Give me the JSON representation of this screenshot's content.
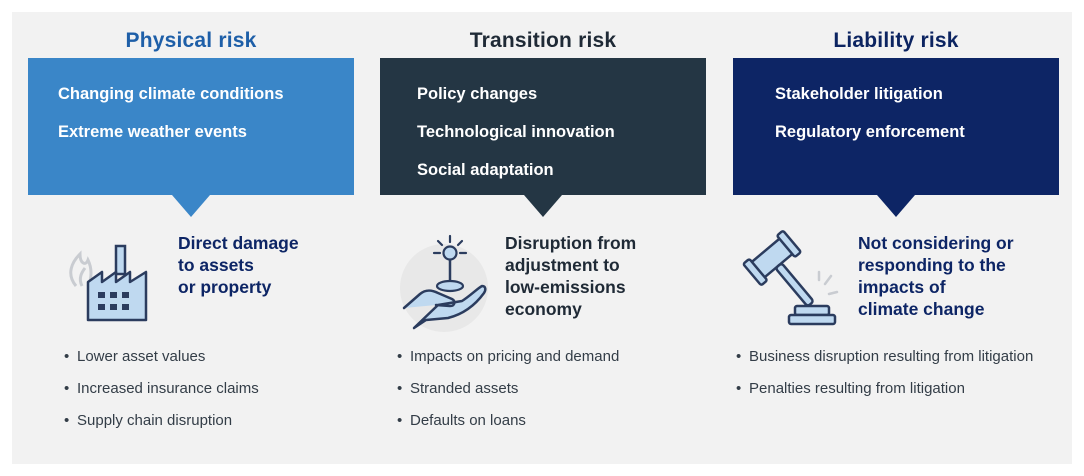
{
  "columns": [
    {
      "title": "Physical risk",
      "box_items": [
        "Changing climate conditions",
        "Extreme weather events"
      ],
      "icon": "factory-fire-icon",
      "impact": "Direct damage to assets or property",
      "impact_lines": [
        "Direct damage",
        "to assets",
        "or property"
      ],
      "bullets": [
        "Lower asset values",
        "Increased insurance claims",
        "Supply chain disruption"
      ]
    },
    {
      "title": "Transition risk",
      "box_items": [
        "Policy changes",
        "Technological innovation",
        "Social adaptation"
      ],
      "icon": "hand-plant-icon",
      "impact_lines": [
        "Disruption from",
        "adjustment to",
        "low-emissions",
        "economy"
      ],
      "bullets": [
        "Impacts on pricing and demand",
        "Stranded assets",
        "Defaults on loans"
      ]
    },
    {
      "title": "Liability risk",
      "box_items": [
        "Stakeholder litigation",
        "Regulatory enforcement"
      ],
      "icon": "gavel-icon",
      "impact_lines": [
        "Not considering or",
        "responding to the",
        "impacts of",
        "climate change"
      ],
      "bullets": [
        "Business disruption resulting from litigation",
        "Penalties resulting from litigation"
      ]
    }
  ],
  "colors": {
    "physical": "#3a86c8",
    "transition": "#243644",
    "liability": "#0d2565",
    "background": "#f2f2f2"
  }
}
